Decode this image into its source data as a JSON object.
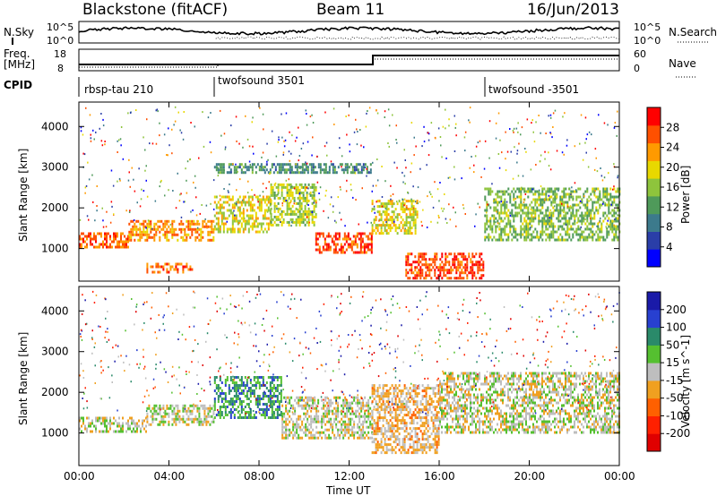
{
  "header": {
    "station": "Blackstone (fitACF)",
    "beam": "Beam 11",
    "date": "16/Jun/2013"
  },
  "top_panels": {
    "nsky_label": "N.Sky",
    "nsearch_label": "N.Search",
    "noise_ticks_left": [
      "10^5",
      "10^0"
    ],
    "noise_ticks_right": [
      "10^5",
      "10^0"
    ],
    "freq_label_1": "Freq.",
    "freq_label_2": "[MHz]",
    "freq_ticks": [
      "18",
      "8"
    ],
    "nave_label": "Nave",
    "nave_ticks": [
      "60",
      "0"
    ],
    "cpid_label": "CPID",
    "cpid_segments": [
      {
        "name": "rbsp-tau 210",
        "start_hour": 0
      },
      {
        "name": "twofsound 3501",
        "start_hour": 6
      },
      {
        "name": "twofsound -3501",
        "start_hour": 18
      }
    ]
  },
  "x_axis": {
    "label": "Time UT",
    "ticks": [
      "00:00",
      "04:00",
      "08:00",
      "12:00",
      "16:00",
      "20:00",
      "00:00"
    ]
  },
  "y_axis": {
    "label": "Slant Range [km]",
    "ticks": [
      "1000",
      "2000",
      "3000",
      "4000"
    ]
  },
  "power_colorbar": {
    "label": "Power [dB]",
    "ticks": [
      "4",
      "8",
      "12",
      "16",
      "20",
      "24",
      "28"
    ],
    "colors": [
      "#0000ff",
      "#2a3ea8",
      "#3c7a8c",
      "#4f9a5a",
      "#8ec43c",
      "#e8d800",
      "#ff9a00",
      "#ff5000",
      "#ff0000"
    ]
  },
  "velocity_colorbar": {
    "label": "Velocity [m s^-1]",
    "ticks": [
      "200",
      "100",
      "50",
      "15",
      "-15",
      "-50",
      "-100",
      "-200"
    ],
    "colors": [
      "#1a1aa8",
      "#2840d0",
      "#2a8a6a",
      "#55c030",
      "#bebebe",
      "#f0a020",
      "#ff6000",
      "#ff2000",
      "#e00000"
    ]
  },
  "chart_data": {
    "type": "heatmap",
    "title": "Blackstone (fitACF)",
    "xlabel": "Time UT",
    "ylabel": "Slant Range [km]",
    "xlim": [
      0,
      24
    ],
    "ylim": [
      200,
      4600
    ],
    "panels": [
      {
        "quantity": "Power [dB]",
        "clim": [
          0,
          30
        ],
        "echo_bands": [
          {
            "t0": 0.0,
            "t1": 2.2,
            "r0": 1050,
            "r1": 1400,
            "value": 24
          },
          {
            "t0": 2.2,
            "t1": 6.0,
            "r0": 1200,
            "r1": 1700,
            "value": 22
          },
          {
            "t0": 6.0,
            "t1": 8.5,
            "r0": 1400,
            "r1": 2300,
            "value": 18
          },
          {
            "t0": 8.5,
            "t1": 10.5,
            "r0": 1600,
            "r1": 2600,
            "value": 16
          },
          {
            "t0": 10.5,
            "t1": 13.0,
            "r0": 900,
            "r1": 1400,
            "value": 26
          },
          {
            "t0": 13.0,
            "t1": 15.0,
            "r0": 1400,
            "r1": 2200,
            "value": 18
          },
          {
            "t0": 14.5,
            "t1": 18.0,
            "r0": 300,
            "r1": 900,
            "value": 26
          },
          {
            "t0": 18.0,
            "t1": 24.0,
            "r0": 1200,
            "r1": 2500,
            "value": 14
          },
          {
            "t0": 6.0,
            "t1": 13.0,
            "r0": 2900,
            "r1": 3100,
            "value": 10
          },
          {
            "t0": 3.0,
            "t1": 5.0,
            "r0": 450,
            "r1": 650,
            "value": 24
          }
        ]
      },
      {
        "quantity": "Velocity [m s^-1]",
        "clim": [
          -200,
          200
        ],
        "echo_bands": [
          {
            "t0": 0.0,
            "t1": 3.0,
            "r0": 1050,
            "r1": 1400,
            "value": 0
          },
          {
            "t0": 3.0,
            "t1": 6.0,
            "r0": 1200,
            "r1": 1700,
            "value": 0
          },
          {
            "t0": 6.0,
            "t1": 9.0,
            "r0": 1400,
            "r1": 2400,
            "value": 80
          },
          {
            "t0": 9.0,
            "t1": 13.0,
            "r0": 900,
            "r1": 1900,
            "value": 0
          },
          {
            "t0": 13.0,
            "t1": 16.0,
            "r0": 500,
            "r1": 2200,
            "value": -30
          },
          {
            "t0": 16.0,
            "t1": 24.0,
            "r0": 1000,
            "r1": 2500,
            "value": 0
          }
        ]
      }
    ]
  }
}
